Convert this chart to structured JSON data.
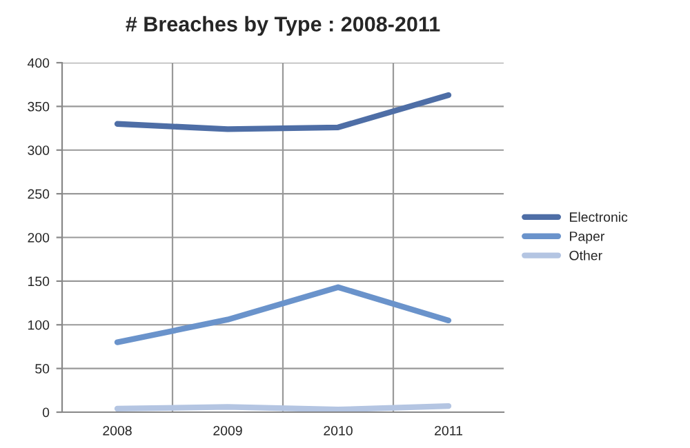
{
  "chart_data": {
    "type": "line",
    "title": "# Breaches by Type : 2008-2011",
    "categories": [
      "2008",
      "2009",
      "2010",
      "2011"
    ],
    "series": [
      {
        "name": "Electronic",
        "color": "#4e6ea6",
        "values": [
          330,
          324,
          326,
          363
        ]
      },
      {
        "name": "Paper",
        "color": "#6a93cb",
        "values": [
          80,
          106,
          143,
          105
        ]
      },
      {
        "name": "Other",
        "color": "#b4c5e2",
        "values": [
          4,
          6,
          3,
          7
        ]
      }
    ],
    "ylim": [
      0,
      400
    ],
    "yticks": [
      0,
      50,
      100,
      150,
      200,
      250,
      300,
      350,
      400
    ],
    "grid": true,
    "legend": "right",
    "marker": "none"
  }
}
